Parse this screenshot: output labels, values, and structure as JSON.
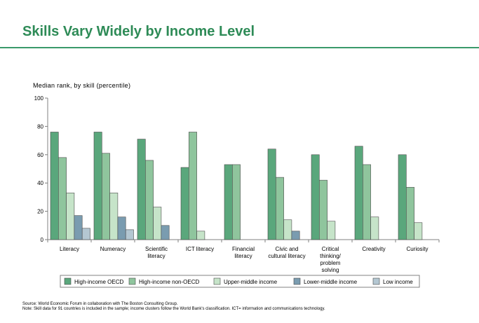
{
  "page": {
    "title": "Skills Vary Widely by Income Level",
    "source": "Source: World Economic Forum in collaboration with The Boston Consulting Group.",
    "note": "Note: Skill data for 91 countries is included in the sample; income clusters follow the World Bank's classification. ICT= information and communications technology."
  },
  "chart_data": {
    "type": "bar",
    "title": "Skills Vary Widely by Income Level",
    "ylabel": "Median rank, by skill (percentile)",
    "xlabel": "",
    "ylim": [
      0,
      100
    ],
    "yticks": [
      0,
      20,
      40,
      60,
      80,
      100
    ],
    "grid": false,
    "legend_position": "bottom",
    "categories": [
      [
        "Literacy"
      ],
      [
        "Numeracy"
      ],
      [
        "Scientific",
        "literacy"
      ],
      [
        "ICT literacy"
      ],
      [
        "Financial",
        "literacy"
      ],
      [
        "Civic and",
        "cultural literacy"
      ],
      [
        "Critical",
        "thinking/",
        "problem",
        "solving"
      ],
      [
        "Creativity"
      ],
      [
        "Curiosity"
      ]
    ],
    "series": [
      {
        "name": "High-income OECD",
        "color": "#5aa77c",
        "values": [
          76,
          76,
          71,
          51,
          53,
          64,
          60,
          66,
          60
        ]
      },
      {
        "name": "High-income non-OECD",
        "color": "#8fc59d",
        "values": [
          58,
          61,
          56,
          76,
          53,
          44,
          42,
          53,
          37
        ]
      },
      {
        "name": "Upper-middle income",
        "color": "#c6e4c9",
        "values": [
          33,
          33,
          23,
          6,
          null,
          14,
          13,
          16,
          12
        ]
      },
      {
        "name": "Lower-middle income",
        "color": "#7a9cb0",
        "values": [
          17,
          16,
          10,
          null,
          null,
          6,
          null,
          null,
          null
        ]
      },
      {
        "name": "Low income",
        "color": "#b4c7d2",
        "values": [
          8,
          7,
          null,
          null,
          null,
          null,
          null,
          null,
          null
        ]
      }
    ]
  }
}
